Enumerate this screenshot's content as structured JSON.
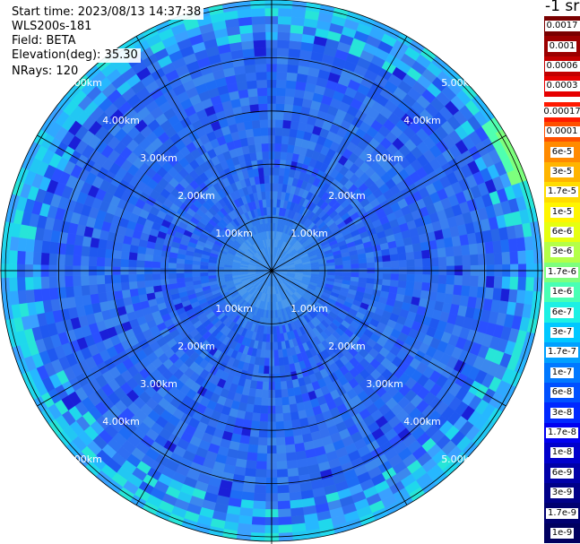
{
  "header": {
    "start_time": "Start time: 2023/08/13 14:37:38",
    "instrument": "WLS200s-181",
    "field": "Field: BETA",
    "elevation": "Elevation(deg): 35.30",
    "nrays": "NRays: 120"
  },
  "colorbar": {
    "units": "-1 sr",
    "upper_labels": [
      "0.0017",
      "0.001",
      "0.0006",
      "0.0003"
    ],
    "upper_colors": [
      "#7a0000",
      "#9c0000",
      "#c20000",
      "#e60000"
    ],
    "lower_labels": [
      "0.00017",
      "0.0001",
      "6e-5",
      "3e-5",
      "1.7e-5",
      "1e-5",
      "6e-6",
      "3e-6",
      "1.7e-6",
      "1e-6",
      "6e-7",
      "3e-7",
      "1.7e-7",
      "1e-7",
      "6e-8",
      "3e-8",
      "1.7e-8",
      "1e-8",
      "6e-9",
      "3e-9",
      "1.7e-9",
      "1e-9"
    ],
    "lower_colors": [
      "#ff1a00",
      "#ff5000",
      "#ff8a00",
      "#ffb400",
      "#ffdc00",
      "#fff500",
      "#e6ff10",
      "#b4ff48",
      "#7dff7d",
      "#48ffb4",
      "#1cf0e4",
      "#00c8ff",
      "#00a0ff",
      "#0078ff",
      "#0050ff",
      "#0028ff",
      "#0000f0",
      "#0000cc",
      "#0000a8",
      "#000088",
      "#000070",
      "#000060"
    ]
  },
  "chart_data": {
    "type": "heatmap",
    "projection": "polar-ppi",
    "field": "BETA",
    "elevation_deg": 35.3,
    "n_rays": 120,
    "range_rings_km": [
      1,
      2,
      3,
      4,
      5
    ],
    "ring_labels": [
      "1.00km",
      "2.00km",
      "3.00km",
      "4.00km",
      "5.00km"
    ],
    "spokes_deg": [
      0,
      30,
      60,
      90,
      120,
      150,
      180,
      210,
      240,
      270,
      300,
      330
    ],
    "colormap": "jet",
    "value_range": [
      1e-09,
      0.0017
    ],
    "typical_value": "1e-8 to 3e-8"
  }
}
